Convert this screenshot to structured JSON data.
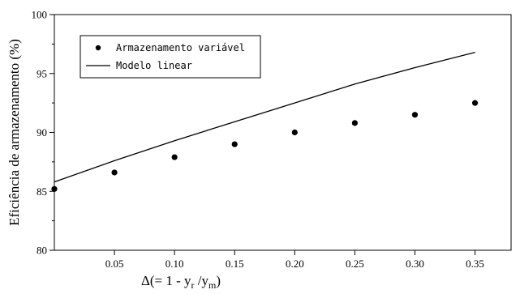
{
  "chart_data": {
    "type": "line",
    "title": "",
    "xlabel_parts": {
      "prefix": "Δ(= 1 - y",
      "sub1": "r",
      "mid": " /y",
      "sub2": "m",
      "suffix": ")"
    },
    "ylabel": "Eficiência de armazenamento (%)",
    "xlim": [
      0,
      0.38
    ],
    "ylim": [
      80,
      100
    ],
    "x_ticks": [
      0.05,
      0.1,
      0.15,
      0.2,
      0.25,
      0.3,
      0.35
    ],
    "x_tick_labels": [
      "0.05",
      "0.10",
      "0.15",
      "0.20",
      "0.25",
      "0.30",
      "0.35"
    ],
    "y_ticks": [
      80,
      85,
      90,
      95,
      100
    ],
    "y_tick_labels": [
      "80",
      "85",
      "90",
      "95",
      "100"
    ],
    "grid": false,
    "legend_position": "top-left",
    "series": [
      {
        "name": "Armazenamento variável",
        "type": "scatter",
        "x": [
          0.0,
          0.05,
          0.1,
          0.15,
          0.2,
          0.25,
          0.3,
          0.35
        ],
        "y": [
          85.2,
          86.6,
          87.9,
          89.0,
          90.0,
          90.8,
          91.5,
          92.5
        ]
      },
      {
        "name": "Modelo linear",
        "type": "line",
        "x": [
          0.0,
          0.05,
          0.1,
          0.15,
          0.2,
          0.25,
          0.3,
          0.35
        ],
        "y": [
          85.8,
          87.6,
          89.3,
          90.9,
          92.5,
          94.1,
          95.5,
          96.8
        ]
      }
    ]
  }
}
